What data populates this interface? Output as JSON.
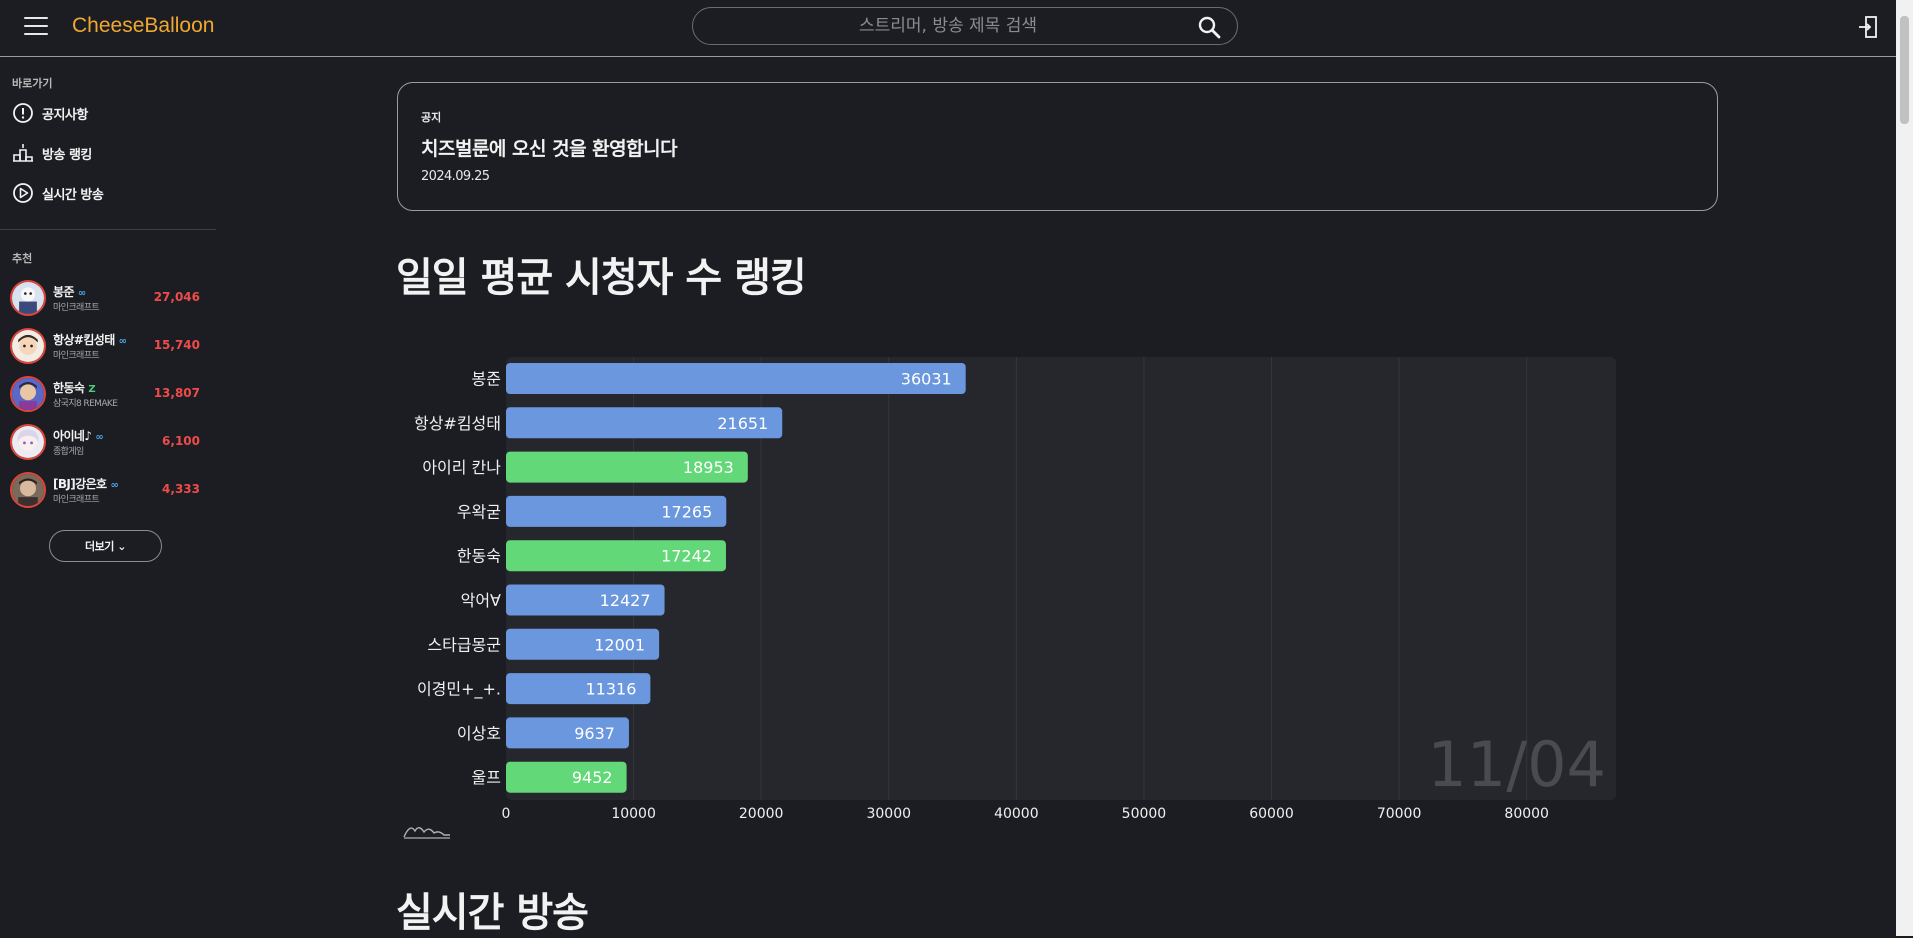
{
  "header": {
    "logo": "CheeseBalloon",
    "search_placeholder": "스트리머, 방송 제목 검색",
    "icons": [
      "menu-icon",
      "search-icon",
      "login-icon"
    ]
  },
  "sidebar": {
    "shortcut_title": "바로가기",
    "nav": [
      {
        "label": "공지사항",
        "icon": "exclamation-circle-icon"
      },
      {
        "label": "방송 랭킹",
        "icon": "ranking-icon"
      },
      {
        "label": "실시간 방송",
        "icon": "play-circle-icon"
      }
    ],
    "recommend_title": "추천",
    "recommended": [
      {
        "name": "봉준",
        "badge": "∞",
        "badge_color": "#4aa8e8",
        "category": "마인크래프트",
        "viewers": "27,046"
      },
      {
        "name": "항상#킴성태",
        "badge": "∞",
        "badge_color": "#4aa8e8",
        "category": "마인크래프트",
        "viewers": "15,740"
      },
      {
        "name": "한동숙",
        "badge": "Z",
        "badge_color": "#4ad07a",
        "category": "삼국지8 REMAKE",
        "viewers": "13,807"
      },
      {
        "name": "아이네♪",
        "badge": "∞",
        "badge_color": "#4aa8e8",
        "category": "종합게임",
        "viewers": "6,100"
      },
      {
        "name": "[BJ]강은호",
        "badge": "∞",
        "badge_color": "#4aa8e8",
        "category": "마인크래프트",
        "viewers": "4,333"
      }
    ],
    "more_label": "더보기 ⌄"
  },
  "notice": {
    "tag": "공지",
    "title": "치즈벌룬에 오신 것을 환영합니다",
    "date": "2024.09.25"
  },
  "sections": {
    "ranking_title": "일일 평균 시청자 수 랭킹",
    "live_title": "실시간 방송"
  },
  "chart_data": {
    "type": "bar",
    "orientation": "horizontal",
    "categories": [
      "봉준",
      "항상#킴성태",
      "아이리 칸나",
      "우왁굳",
      "한동숙",
      "악어∀",
      "스타급몽군",
      "이경민+_+.",
      "이상호",
      "울프"
    ],
    "values": [
      36031,
      21651,
      18953,
      17265,
      17242,
      12427,
      12001,
      11316,
      9637,
      9452
    ],
    "colors": [
      "#6a97de",
      "#6a97de",
      "#63d878",
      "#6a97de",
      "#63d878",
      "#6a97de",
      "#6a97de",
      "#6a97de",
      "#6a97de",
      "#63d878"
    ],
    "xlim": [
      0,
      87000
    ],
    "xticks": [
      0,
      10000,
      20000,
      30000,
      40000,
      50000,
      60000,
      70000,
      80000
    ],
    "date_label": "11/04",
    "grid": true
  },
  "colors": {
    "background": "#1b1d22",
    "accent": "#f0a830",
    "viewer_count": "#ef4b4b"
  }
}
